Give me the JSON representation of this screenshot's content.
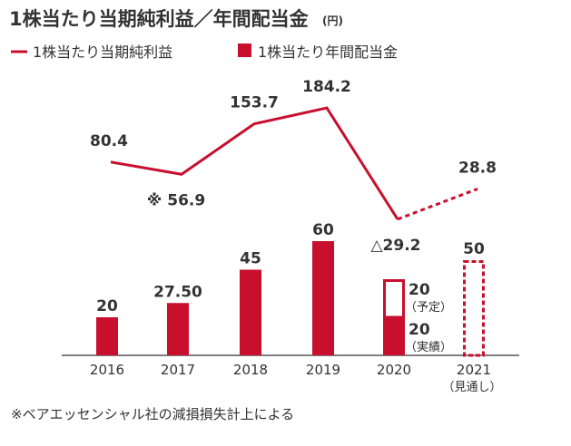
{
  "title": "1株当たり当期純利益／年間配当金",
  "unit": "(円)",
  "legend": [
    {
      "label": "1株当たり当期純利益",
      "kind": "line"
    },
    {
      "label": "1株当たり年間配当金",
      "kind": "bar"
    }
  ],
  "footnote": "※ベアエッセンシャル社の減損損失計上による",
  "colors": {
    "accent": "#c8102e",
    "text": "#333333",
    "axis": "#555555"
  },
  "chart_data": {
    "type": "bar+line",
    "categories": [
      "2016",
      "2017",
      "2018",
      "2019",
      "2020",
      "2021"
    ],
    "category_sublabels": [
      "",
      "",
      "",
      "",
      "",
      "（見通し）"
    ],
    "series": [
      {
        "name": "1株当たり当期純利益",
        "type": "line",
        "values": [
          80.4,
          56.9,
          153.7,
          184.2,
          -29.2,
          28.8
        ],
        "labels": [
          "80.4",
          "※ 56.9",
          "153.7",
          "184.2",
          "△29.2",
          "28.8"
        ],
        "dashed_from_index": 4
      },
      {
        "name": "1株当たり年間配当金",
        "type": "bar",
        "values": [
          20,
          27.5,
          45,
          60,
          40,
          50
        ],
        "labels": [
          "20",
          "27.50",
          "45",
          "60",
          "",
          "50"
        ],
        "forecast_index": 5,
        "split_2020": {
          "actual": 20,
          "actual_label": "20",
          "actual_note": "（実績）",
          "planned": 20,
          "planned_label": "20",
          "planned_note": "（予定）"
        }
      }
    ]
  }
}
